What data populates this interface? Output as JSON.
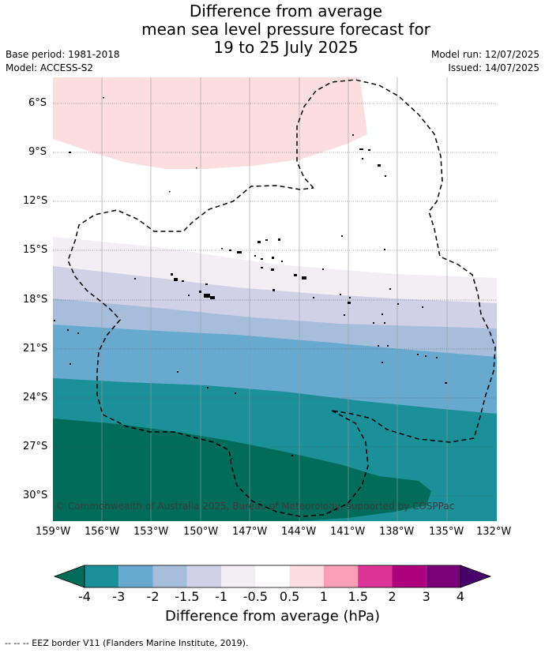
{
  "title": {
    "line1": "Difference from average",
    "line2": "mean sea level pressure forecast for",
    "line3": "19 to 25 July 2025"
  },
  "meta": {
    "base_period": "Base period: 1981-2018",
    "model": "Model: ACCESS-S2",
    "model_run": "Model run: 12/07/2025",
    "issued": "Issued: 14/07/2025"
  },
  "map": {
    "lat_labels": [
      "6°S",
      "9°S",
      "12°S",
      "15°S",
      "18°S",
      "21°S",
      "24°S",
      "27°S",
      "30°S"
    ],
    "lon_labels": [
      "159°W",
      "156°W",
      "153°W",
      "150°W",
      "147°W",
      "144°W",
      "141°W",
      "138°W",
      "135°W",
      "132°W"
    ],
    "copyright": "© Commonwealth of Australia 2025, Bureau of Meteorology, supported by COSPPac",
    "colors": {
      "pos_0_5_1": "#fcdede",
      "neutral": "#ffffff",
      "neg_0_5_1": "#f2eef4",
      "neg_1_1_5": "#d0d1e6",
      "neg_1_5_2": "#a6bddb",
      "neg_2_3": "#67a9cf",
      "neg_3_4": "#1c9099",
      "neg_lt_4": "#016c59"
    }
  },
  "colorbar": {
    "labels": [
      "-4",
      "-3",
      "-2",
      "-1.5",
      "-1",
      "-0.5",
      "0.5",
      "1",
      "1.5",
      "2",
      "3",
      "4"
    ],
    "colors": [
      "#1c9099",
      "#67a9cf",
      "#a6bddb",
      "#d0d1e6",
      "#f2eef4",
      "#ffffff",
      "#fcdede",
      "#fa9fb5",
      "#dd3497",
      "#ae017e",
      "#7a0177"
    ],
    "under_color": "#016c59",
    "over_color": "#49006a",
    "title": "Difference from average (hPa)"
  },
  "footer": "-- -- -- EEZ border V11 (Flanders Marine Institute, 2019)."
}
